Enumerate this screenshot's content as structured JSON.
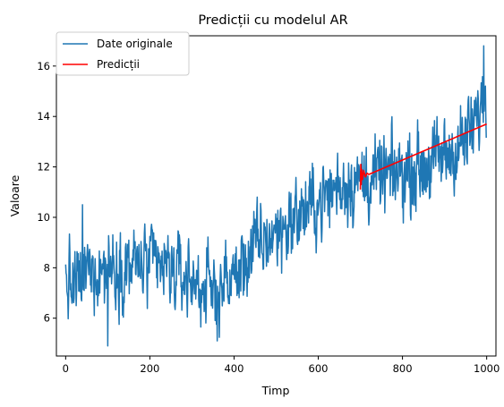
{
  "chart_data": {
    "type": "line",
    "title": "Predicții cu modelul AR",
    "xlabel": "Timp",
    "ylabel": "Valoare",
    "xlim": [
      -22,
      1022
    ],
    "ylim": [
      4.5,
      17.2
    ],
    "xticks": [
      0,
      200,
      400,
      600,
      800,
      1000
    ],
    "yticks": [
      6,
      8,
      10,
      12,
      14,
      16
    ],
    "grid": false,
    "legend_position": "upper-left",
    "series": [
      {
        "name": "Date originale",
        "color": "#1f77b4",
        "x_start": 0,
        "x_end": 999,
        "trend_knots": [
          [
            0,
            7.4
          ],
          [
            20,
            7.2
          ],
          [
            50,
            7.9
          ],
          [
            100,
            8.0
          ],
          [
            150,
            8.1
          ],
          [
            200,
            8.1
          ],
          [
            250,
            7.9
          ],
          [
            300,
            7.5
          ],
          [
            350,
            7.1
          ],
          [
            400,
            7.6
          ],
          [
            450,
            8.8
          ],
          [
            500,
            9.4
          ],
          [
            550,
            10.0
          ],
          [
            600,
            10.6
          ],
          [
            650,
            11.3
          ],
          [
            700,
            11.4
          ],
          [
            750,
            11.6
          ],
          [
            800,
            11.8
          ],
          [
            850,
            12.0
          ],
          [
            900,
            12.4
          ],
          [
            950,
            13.0
          ],
          [
            980,
            14.0
          ],
          [
            999,
            15.0
          ]
        ],
        "noise_amplitude": 0.9,
        "extremes": [
          [
            100,
            4.9
          ],
          [
            360,
            5.1
          ],
          [
            993,
            16.8
          ],
          [
            40,
            10.5
          ]
        ]
      },
      {
        "name": "Predicții",
        "color": "#ff0000",
        "points": [
          [
            700,
            11.1
          ],
          [
            701,
            12.1
          ],
          [
            702,
            11.3
          ],
          [
            703,
            11.9
          ],
          [
            705,
            11.5
          ],
          [
            708,
            11.85
          ],
          [
            712,
            11.6
          ],
          [
            716,
            11.75
          ],
          [
            720,
            11.7
          ],
          [
            1000,
            13.7
          ]
        ]
      }
    ]
  }
}
